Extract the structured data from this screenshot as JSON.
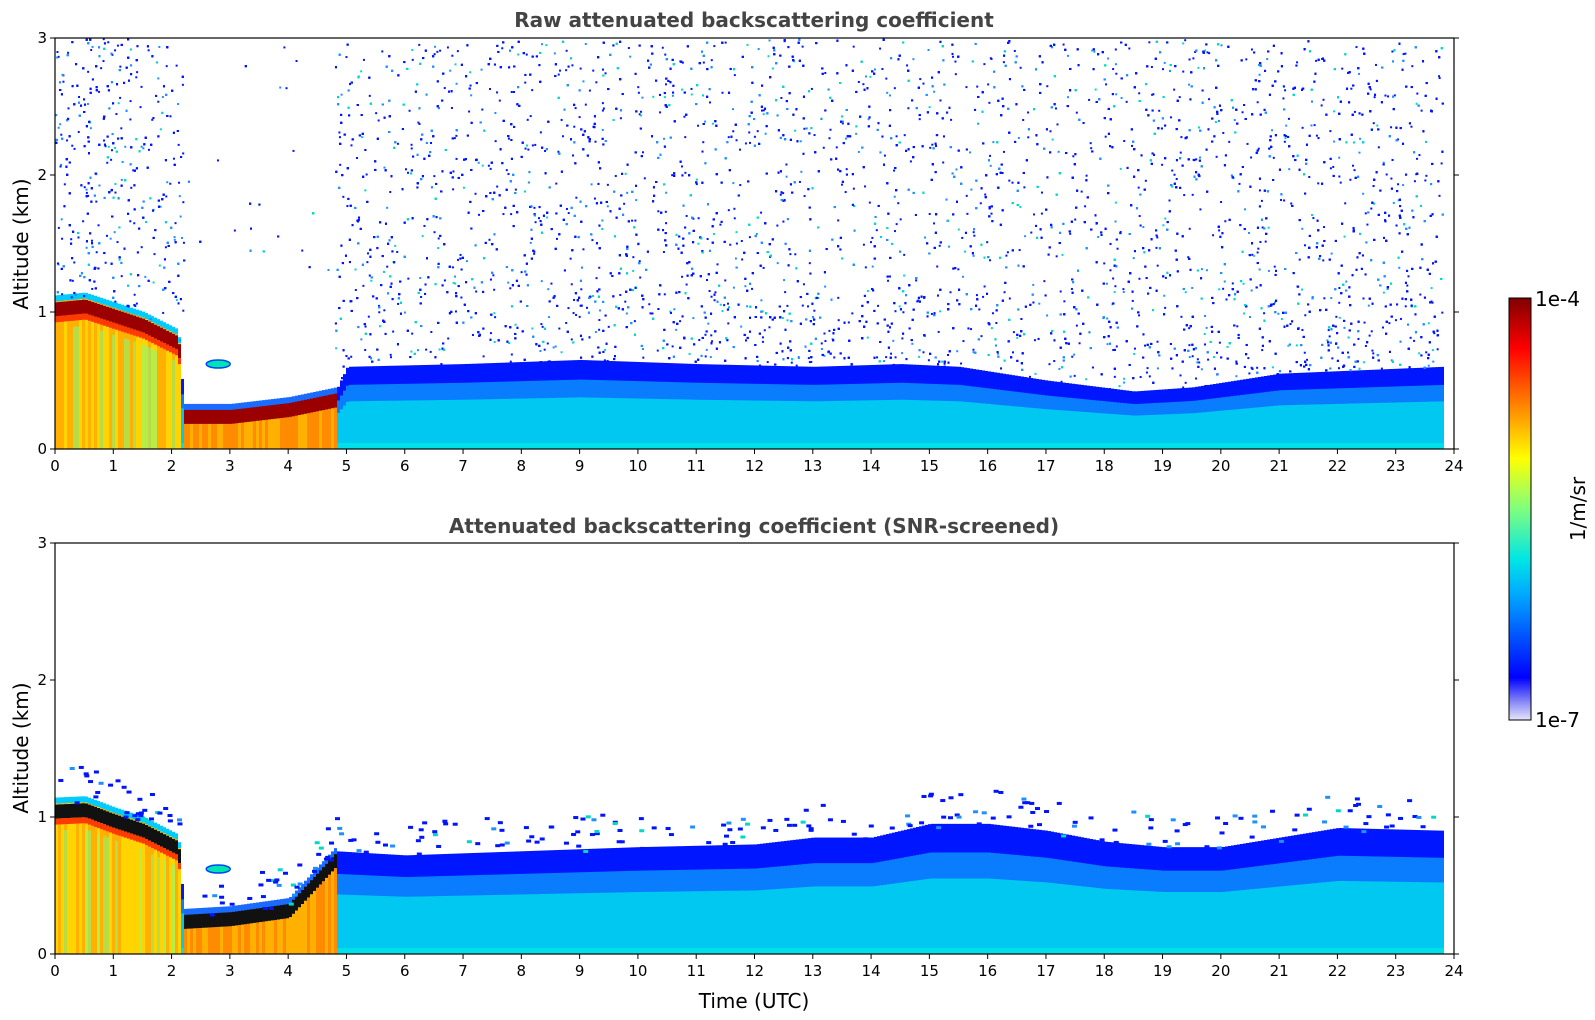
{
  "chart_data": [
    {
      "type": "heatmap",
      "title": "Raw attenuated backscattering coefficient",
      "xlabel": "",
      "ylabel": "Altitude (km)",
      "xlim": [
        0,
        24
      ],
      "ylim": [
        0,
        3
      ],
      "xticks": [
        "0",
        "1",
        "2",
        "3",
        "4",
        "5",
        "6",
        "7",
        "8",
        "9",
        "10",
        "11",
        "12",
        "13",
        "14",
        "15",
        "16",
        "17",
        "18",
        "19",
        "20",
        "21",
        "22",
        "23",
        "24"
      ],
      "yticks": [
        "0",
        "1",
        "2",
        "3"
      ],
      "data_end_time": 23.8,
      "noise_fill": "dense",
      "boundary_layer_top_km": [
        [
          0,
          1.1
        ],
        [
          0.5,
          1.12
        ],
        [
          1,
          1.05
        ],
        [
          1.5,
          0.98
        ],
        [
          2.1,
          0.85
        ],
        [
          2.2,
          0.3
        ],
        [
          3,
          0.3
        ],
        [
          4,
          0.35
        ],
        [
          4.8,
          0.42
        ],
        [
          5,
          0.6
        ],
        [
          7,
          0.62
        ],
        [
          9,
          0.65
        ],
        [
          11,
          0.62
        ],
        [
          13,
          0.6
        ],
        [
          14.5,
          0.62
        ],
        [
          15.5,
          0.6
        ],
        [
          17,
          0.5
        ],
        [
          18.5,
          0.42
        ],
        [
          19.5,
          0.45
        ],
        [
          21,
          0.55
        ],
        [
          23.8,
          0.6
        ]
      ],
      "cloud_layer": [
        {
          "t_start": 0,
          "t_end": 2.1,
          "base_km": [
            0.98,
            0.9
          ],
          "top_km": [
            1.1,
            0.85
          ]
        },
        {
          "t_start": 2.2,
          "t_end": 4.8,
          "base_km": [
            0.18,
            0.28
          ],
          "top_km": [
            0.28,
            0.36
          ]
        }
      ],
      "features": [
        "white gap 2.2-4.8 UTC above cloud (fully attenuated)",
        "elevated aerosol layer near 0.6 km 2.6-3.0 UTC"
      ]
    },
    {
      "type": "heatmap",
      "title": "Attenuated backscattering coefficient (SNR-screened)",
      "xlabel": "Time (UTC)",
      "ylabel": "Altitude (km)",
      "xlim": [
        0,
        24
      ],
      "ylim": [
        0,
        3
      ],
      "xticks": [
        "0",
        "1",
        "2",
        "3",
        "4",
        "5",
        "6",
        "7",
        "8",
        "9",
        "10",
        "11",
        "12",
        "13",
        "14",
        "15",
        "16",
        "17",
        "18",
        "19",
        "20",
        "21",
        "22",
        "23",
        "24"
      ],
      "yticks": [
        "0",
        "1",
        "2",
        "3"
      ],
      "data_end_time": 23.8,
      "noise_fill": "screened",
      "boundary_layer_top_km": [
        [
          0,
          1.12
        ],
        [
          0.5,
          1.13
        ],
        [
          1,
          1.05
        ],
        [
          1.5,
          0.98
        ],
        [
          2.1,
          0.85
        ],
        [
          2.2,
          0.3
        ],
        [
          3,
          0.32
        ],
        [
          4,
          0.38
        ],
        [
          4.8,
          0.75
        ],
        [
          6,
          0.72
        ],
        [
          8,
          0.75
        ],
        [
          10,
          0.78
        ],
        [
          12,
          0.8
        ],
        [
          13,
          0.85
        ],
        [
          14,
          0.85
        ],
        [
          15,
          0.95
        ],
        [
          16,
          0.95
        ],
        [
          17,
          0.9
        ],
        [
          18,
          0.82
        ],
        [
          19,
          0.78
        ],
        [
          20,
          0.78
        ],
        [
          21,
          0.85
        ],
        [
          22,
          0.92
        ],
        [
          23.8,
          0.9
        ]
      ]
    }
  ],
  "colorbar": {
    "label": "1/m/sr",
    "max_label": "1e-4",
    "min_label": "1e-7",
    "scale": "log",
    "colormap": "jet",
    "colors": [
      "#e6e6fa",
      "#0000ff",
      "#00aaff",
      "#00e5e5",
      "#7fff7f",
      "#ffff00",
      "#ff8000",
      "#ff0000",
      "#800000"
    ]
  }
}
